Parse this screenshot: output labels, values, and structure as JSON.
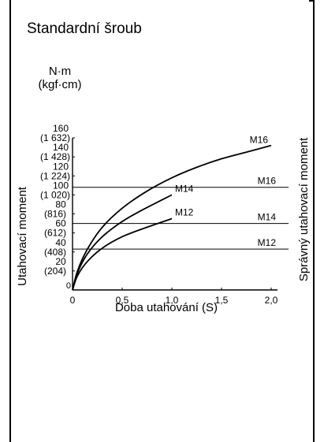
{
  "title": "Standardní šroub",
  "chart_data": {
    "type": "line",
    "xlabel": "Doba utahování (S)",
    "ylabel": "Utahovací moment",
    "y2label": "Správný utahovací moment",
    "yunit": "N·m",
    "yunit_alt": "(kgf·cm)",
    "xlim": [
      0,
      2.0
    ],
    "ylim": [
      0,
      160
    ],
    "x_ticks": [
      {
        "value": 0,
        "label": "0"
      },
      {
        "value": 0.5,
        "label": "0,5"
      },
      {
        "value": 1.0,
        "label": "1,0"
      },
      {
        "value": 1.5,
        "label": "1,5"
      },
      {
        "value": 2.0,
        "label": "2,0"
      }
    ],
    "y_ticks": [
      {
        "value": 0,
        "label": "0",
        "alt": ""
      },
      {
        "value": 20,
        "label": "20",
        "alt": "(204)"
      },
      {
        "value": 40,
        "label": "40",
        "alt": "(408)"
      },
      {
        "value": 60,
        "label": "60",
        "alt": "(612)"
      },
      {
        "value": 80,
        "label": "80",
        "alt": "(816)"
      },
      {
        "value": 100,
        "label": "100",
        "alt": "(1 020)"
      },
      {
        "value": 120,
        "label": "120",
        "alt": "(1 224)"
      },
      {
        "value": 140,
        "label": "140",
        "alt": "(1 428)"
      },
      {
        "value": 160,
        "label": "160",
        "alt": "(1 632)"
      }
    ],
    "series": [
      {
        "name": "M16",
        "x": [
          0,
          0.05,
          0.15,
          0.3,
          0.5,
          0.75,
          1.0,
          1.25,
          1.5,
          1.75,
          2.0
        ],
        "y": [
          0,
          20,
          43,
          66,
          86,
          104,
          118,
          129,
          138,
          145,
          152
        ]
      },
      {
        "name": "M14",
        "x": [
          0,
          0.05,
          0.15,
          0.3,
          0.5,
          0.7,
          1.0
        ],
        "y": [
          0,
          18,
          38,
          56,
          72,
          84,
          100
        ]
      },
      {
        "name": "M12",
        "x": [
          0,
          0.05,
          0.15,
          0.3,
          0.5,
          0.75,
          1.0
        ],
        "y": [
          0,
          15,
          30,
          44,
          56,
          66,
          75
        ]
      }
    ],
    "reference_lines": [
      {
        "name": "M16",
        "value": 108
      },
      {
        "name": "M14",
        "value": 70
      },
      {
        "name": "M12",
        "value": 43
      }
    ]
  }
}
